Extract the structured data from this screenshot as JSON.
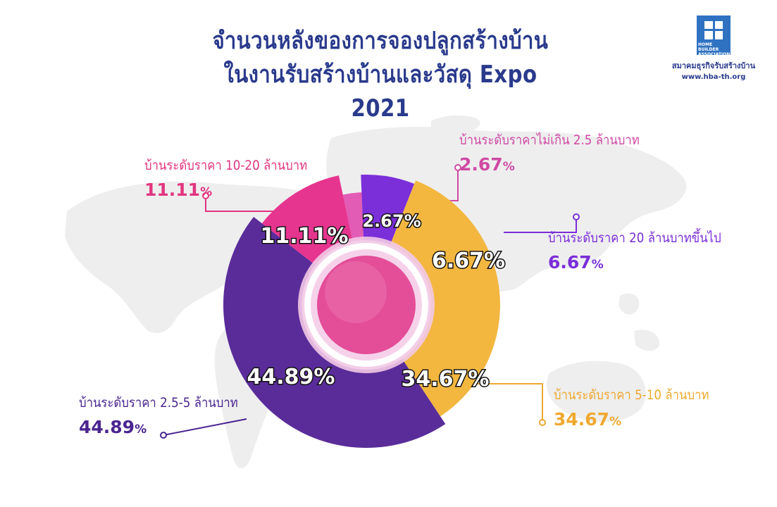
{
  "title": {
    "line1": "จำนวนหลังของการจองปลูกสร้างบ้าน",
    "line2": "ในงานรับสร้างบ้านและวัสดุ Expo 2021"
  },
  "logo": {
    "mark_text": "HOME BUILDER ASSOCIATION",
    "org_name": "สมาคมธุรกิจรับสร้างบ้าน",
    "website": "www.hba-th.org"
  },
  "colors": {
    "title": "#2a3a8c",
    "center": "#e44d98"
  },
  "chart_data": {
    "type": "pie",
    "title": "จำนวนหลังของการจองปลูกสร้างบ้าน ในงานรับสร้างบ้านและวัสดุ Expo 2021",
    "unit": "%",
    "categories": [
      "บ้านระดับราคาไม่เกิน 2.5 ล้านบาท",
      "บ้านระดับราคา 20 ล้านบาทขึ้นไป",
      "บ้านระดับราคา 5-10 ล้านบาท",
      "บ้านระดับราคา 2.5-5 ล้านบาท",
      "บ้านระดับราคา 10-20 ล้านบาท"
    ],
    "values": [
      2.67,
      6.67,
      34.67,
      44.89,
      11.11
    ],
    "value_labels": [
      "2.67%",
      "6.67%",
      "34.67%",
      "44.89%",
      "11.11%"
    ],
    "colors": [
      "#e25bb5",
      "#7b2fd9",
      "#f3b740",
      "#5a2c9a",
      "#e6358f"
    ]
  }
}
